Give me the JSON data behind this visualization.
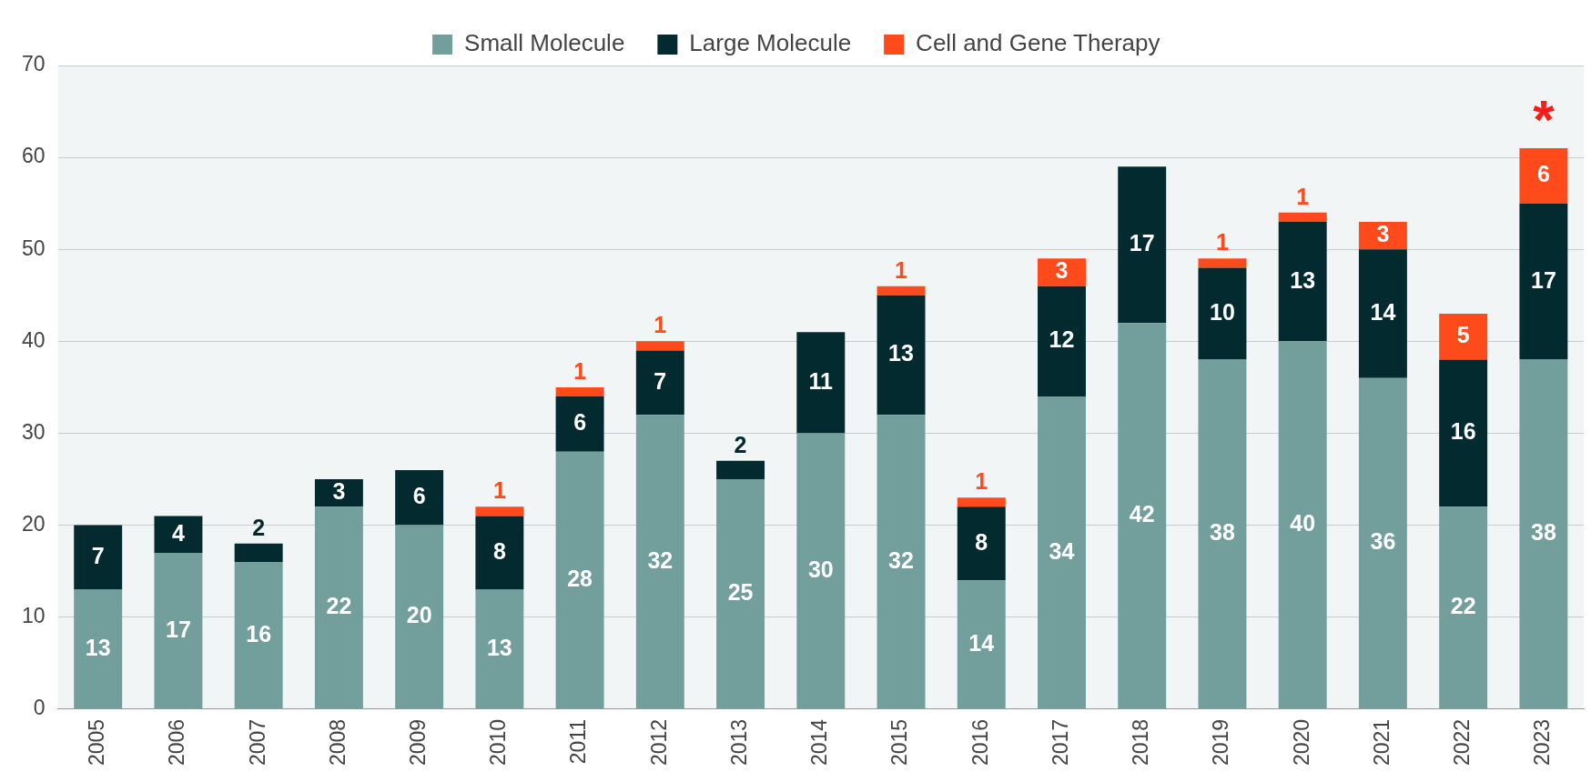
{
  "chart_data": {
    "type": "bar",
    "stacked": true,
    "categories": [
      "2005",
      "2006",
      "2007",
      "2008",
      "2009",
      "2010",
      "2011",
      "2012",
      "2013",
      "2014",
      "2015",
      "2016",
      "2017",
      "2018",
      "2019",
      "2020",
      "2021",
      "2022",
      "2023"
    ],
    "series": [
      {
        "name": "Small Molecule",
        "color": "#729e9c",
        "values": [
          13,
          17,
          16,
          22,
          20,
          13,
          28,
          32,
          25,
          30,
          32,
          14,
          34,
          42,
          38,
          40,
          36,
          22,
          38
        ]
      },
      {
        "name": "Large Molecule",
        "color": "#022a2f",
        "values": [
          7,
          4,
          2,
          3,
          6,
          8,
          6,
          7,
          2,
          11,
          13,
          8,
          12,
          17,
          10,
          13,
          14,
          16,
          17
        ]
      },
      {
        "name": "Cell and Gene Therapy",
        "color": "#ff4a1c",
        "values": [
          null,
          null,
          null,
          null,
          null,
          1,
          1,
          1,
          null,
          null,
          1,
          1,
          3,
          null,
          1,
          1,
          3,
          5,
          6
        ]
      }
    ],
    "ylim": [
      0,
      70
    ],
    "yticks": [
      0,
      10,
      20,
      30,
      40,
      50,
      60,
      70
    ],
    "grid": "y",
    "legend": "top",
    "data_labels": true,
    "annotations": [
      "*"
    ]
  }
}
